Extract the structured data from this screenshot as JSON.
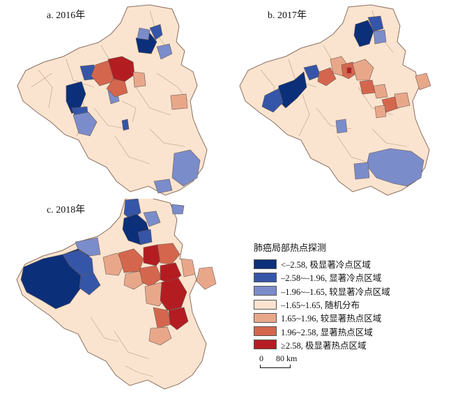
{
  "panels": [
    {
      "label": "a. 2016年"
    },
    {
      "label": "b. 2017年"
    },
    {
      "label": "c. 2018年"
    }
  ],
  "legend": {
    "title": "肺癌局部热点探测",
    "items": [
      {
        "label": "<–2.58, 极显著冷点区域",
        "color": "#0c2f7a"
      },
      {
        "label": "–2.58~–1.96, 显著冷点区域",
        "color": "#3555a8"
      },
      {
        "label": "–1.96~–1.65, 较显著冷点区域",
        "color": "#7b8ccb"
      },
      {
        "label": "–1.65~1.65, 随机分布",
        "color": "#fbe4cf"
      },
      {
        "label": "1.65~1.96, 较显著热点区域",
        "color": "#e9a78a"
      },
      {
        "label": "1.96~2.58, 显著热点区域",
        "color": "#d5664e"
      },
      {
        "label": "≥2.58, 极显著热点区域",
        "color": "#b31d22"
      }
    ]
  },
  "scalebar": {
    "zero": "0",
    "distance": "80 km"
  }
}
